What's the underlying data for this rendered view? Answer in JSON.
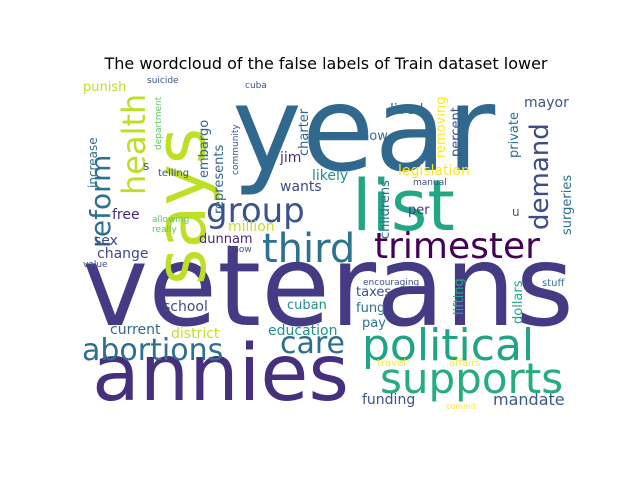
{
  "chart_data": {
    "type": "wordcloud",
    "title": "The wordcloud of the false labels of Train dataset lower",
    "words": [
      {
        "text": "year",
        "size": 118,
        "color": "#31688e"
      },
      {
        "text": "veterans",
        "size": 112,
        "color": "#443b84"
      },
      {
        "text": "annies",
        "size": 78,
        "color": "#46307e"
      },
      {
        "text": "says",
        "size": 70,
        "color": "#bddf26"
      },
      {
        "text": "list",
        "size": 70,
        "color": "#22a785"
      },
      {
        "text": "political",
        "size": 44,
        "color": "#20a486"
      },
      {
        "text": "supports",
        "size": 42,
        "color": "#25ac82"
      },
      {
        "text": "third",
        "size": 40,
        "color": "#2c728e"
      },
      {
        "text": "trimester",
        "size": 36,
        "color": "#440154"
      },
      {
        "text": "group",
        "size": 34,
        "color": "#3b528b"
      },
      {
        "text": "health",
        "size": 32,
        "color": "#bddf26"
      },
      {
        "text": "abortions",
        "size": 30,
        "color": "#2d708e"
      },
      {
        "text": "care",
        "size": 30,
        "color": "#2e6f8e"
      },
      {
        "text": "reform",
        "size": 28,
        "color": "#2c728e"
      },
      {
        "text": "demand",
        "size": 26,
        "color": "#3e4a89"
      },
      {
        "text": "mandate",
        "size": 16,
        "color": "#38588c"
      },
      {
        "text": "funding",
        "size": 14,
        "color": "#3b528b"
      },
      {
        "text": "legislation",
        "size": 14,
        "color": "#fde725"
      },
      {
        "text": "mayor",
        "size": 14,
        "color": "#3b528b"
      },
      {
        "text": "lived",
        "size": 14,
        "color": "#2c728e"
      },
      {
        "text": "jim",
        "size": 14,
        "color": "#46307e"
      },
      {
        "text": "wants",
        "size": 14,
        "color": "#3e4a89"
      },
      {
        "text": "likely",
        "size": 14,
        "color": "#21918c"
      },
      {
        "text": "million",
        "size": 14,
        "color": "#c2df23"
      },
      {
        "text": "dunnam",
        "size": 13,
        "color": "#482878"
      },
      {
        "text": "free",
        "size": 14,
        "color": "#482878"
      },
      {
        "text": "sex",
        "size": 14,
        "color": "#3e4a89"
      },
      {
        "text": "change",
        "size": 14,
        "color": "#3e4a89"
      },
      {
        "text": "school",
        "size": 14,
        "color": "#3e4a89"
      },
      {
        "text": "current",
        "size": 14,
        "color": "#31688e"
      },
      {
        "text": "district",
        "size": 14,
        "color": "#c2df23"
      },
      {
        "text": "education",
        "size": 14,
        "color": "#21918c"
      },
      {
        "text": "cuban",
        "size": 13,
        "color": "#21918c"
      },
      {
        "text": "pay",
        "size": 13,
        "color": "#2c728e"
      },
      {
        "text": "fung",
        "size": 13,
        "color": "#2c728e"
      },
      {
        "text": "taxes",
        "size": 13,
        "color": "#3b528b"
      },
      {
        "text": "per",
        "size": 13,
        "color": "#443a83"
      },
      {
        "text": "now",
        "size": 13,
        "color": "#2c728e"
      },
      {
        "text": "punish",
        "size": 13,
        "color": "#bddf26"
      },
      {
        "text": "embargo",
        "size": 13,
        "color": "#31688e"
      },
      {
        "text": "represents",
        "size": 13,
        "color": "#31688e"
      },
      {
        "text": "charter",
        "size": 13,
        "color": "#31688e"
      },
      {
        "text": "childrens",
        "size": 13,
        "color": "#2c728e"
      },
      {
        "text": "removing",
        "size": 13,
        "color": "#fde725"
      },
      {
        "text": "percent",
        "size": 13,
        "color": "#3b528b"
      },
      {
        "text": "private",
        "size": 13,
        "color": "#2c728e"
      },
      {
        "text": "surgeries",
        "size": 13,
        "color": "#2c728e"
      },
      {
        "text": "lifting",
        "size": 13,
        "color": "#22a785"
      },
      {
        "text": "dollars",
        "size": 13,
        "color": "#22a785"
      },
      {
        "text": "increase",
        "size": 12,
        "color": "#2c728e"
      },
      {
        "text": "telling",
        "size": 10,
        "color": "#3b528b"
      },
      {
        "text": "department",
        "size": 9,
        "color": "#5ec962"
      },
      {
        "text": "suicide",
        "size": 9,
        "color": "#3b528b"
      },
      {
        "text": "community",
        "size": 9,
        "color": "#3b528b"
      },
      {
        "text": "cuba",
        "size": 9,
        "color": "#3b528b"
      },
      {
        "text": "allowing",
        "size": 9,
        "color": "#5ec962"
      },
      {
        "text": "really",
        "size": 9,
        "color": "#5ec962"
      },
      {
        "text": "know",
        "size": 9,
        "color": "#3b528b"
      },
      {
        "text": "value",
        "size": 9,
        "color": "#3b528b"
      },
      {
        "text": "manual",
        "size": 9,
        "color": "#3b528b"
      },
      {
        "text": "u",
        "size": 12,
        "color": "#3b528b"
      },
      {
        "text": "s",
        "size": 12,
        "color": "#3b528b"
      },
      {
        "text": "encouraging",
        "size": 9,
        "color": "#3b528b"
      },
      {
        "text": "travel",
        "size": 10,
        "color": "#fde725"
      },
      {
        "text": "affairs",
        "size": 10,
        "color": "#fde725"
      },
      {
        "text": "stuff",
        "size": 10,
        "color": "#2c728e"
      },
      {
        "text": "commit",
        "size": 8,
        "color": "#fde725"
      }
    ]
  }
}
